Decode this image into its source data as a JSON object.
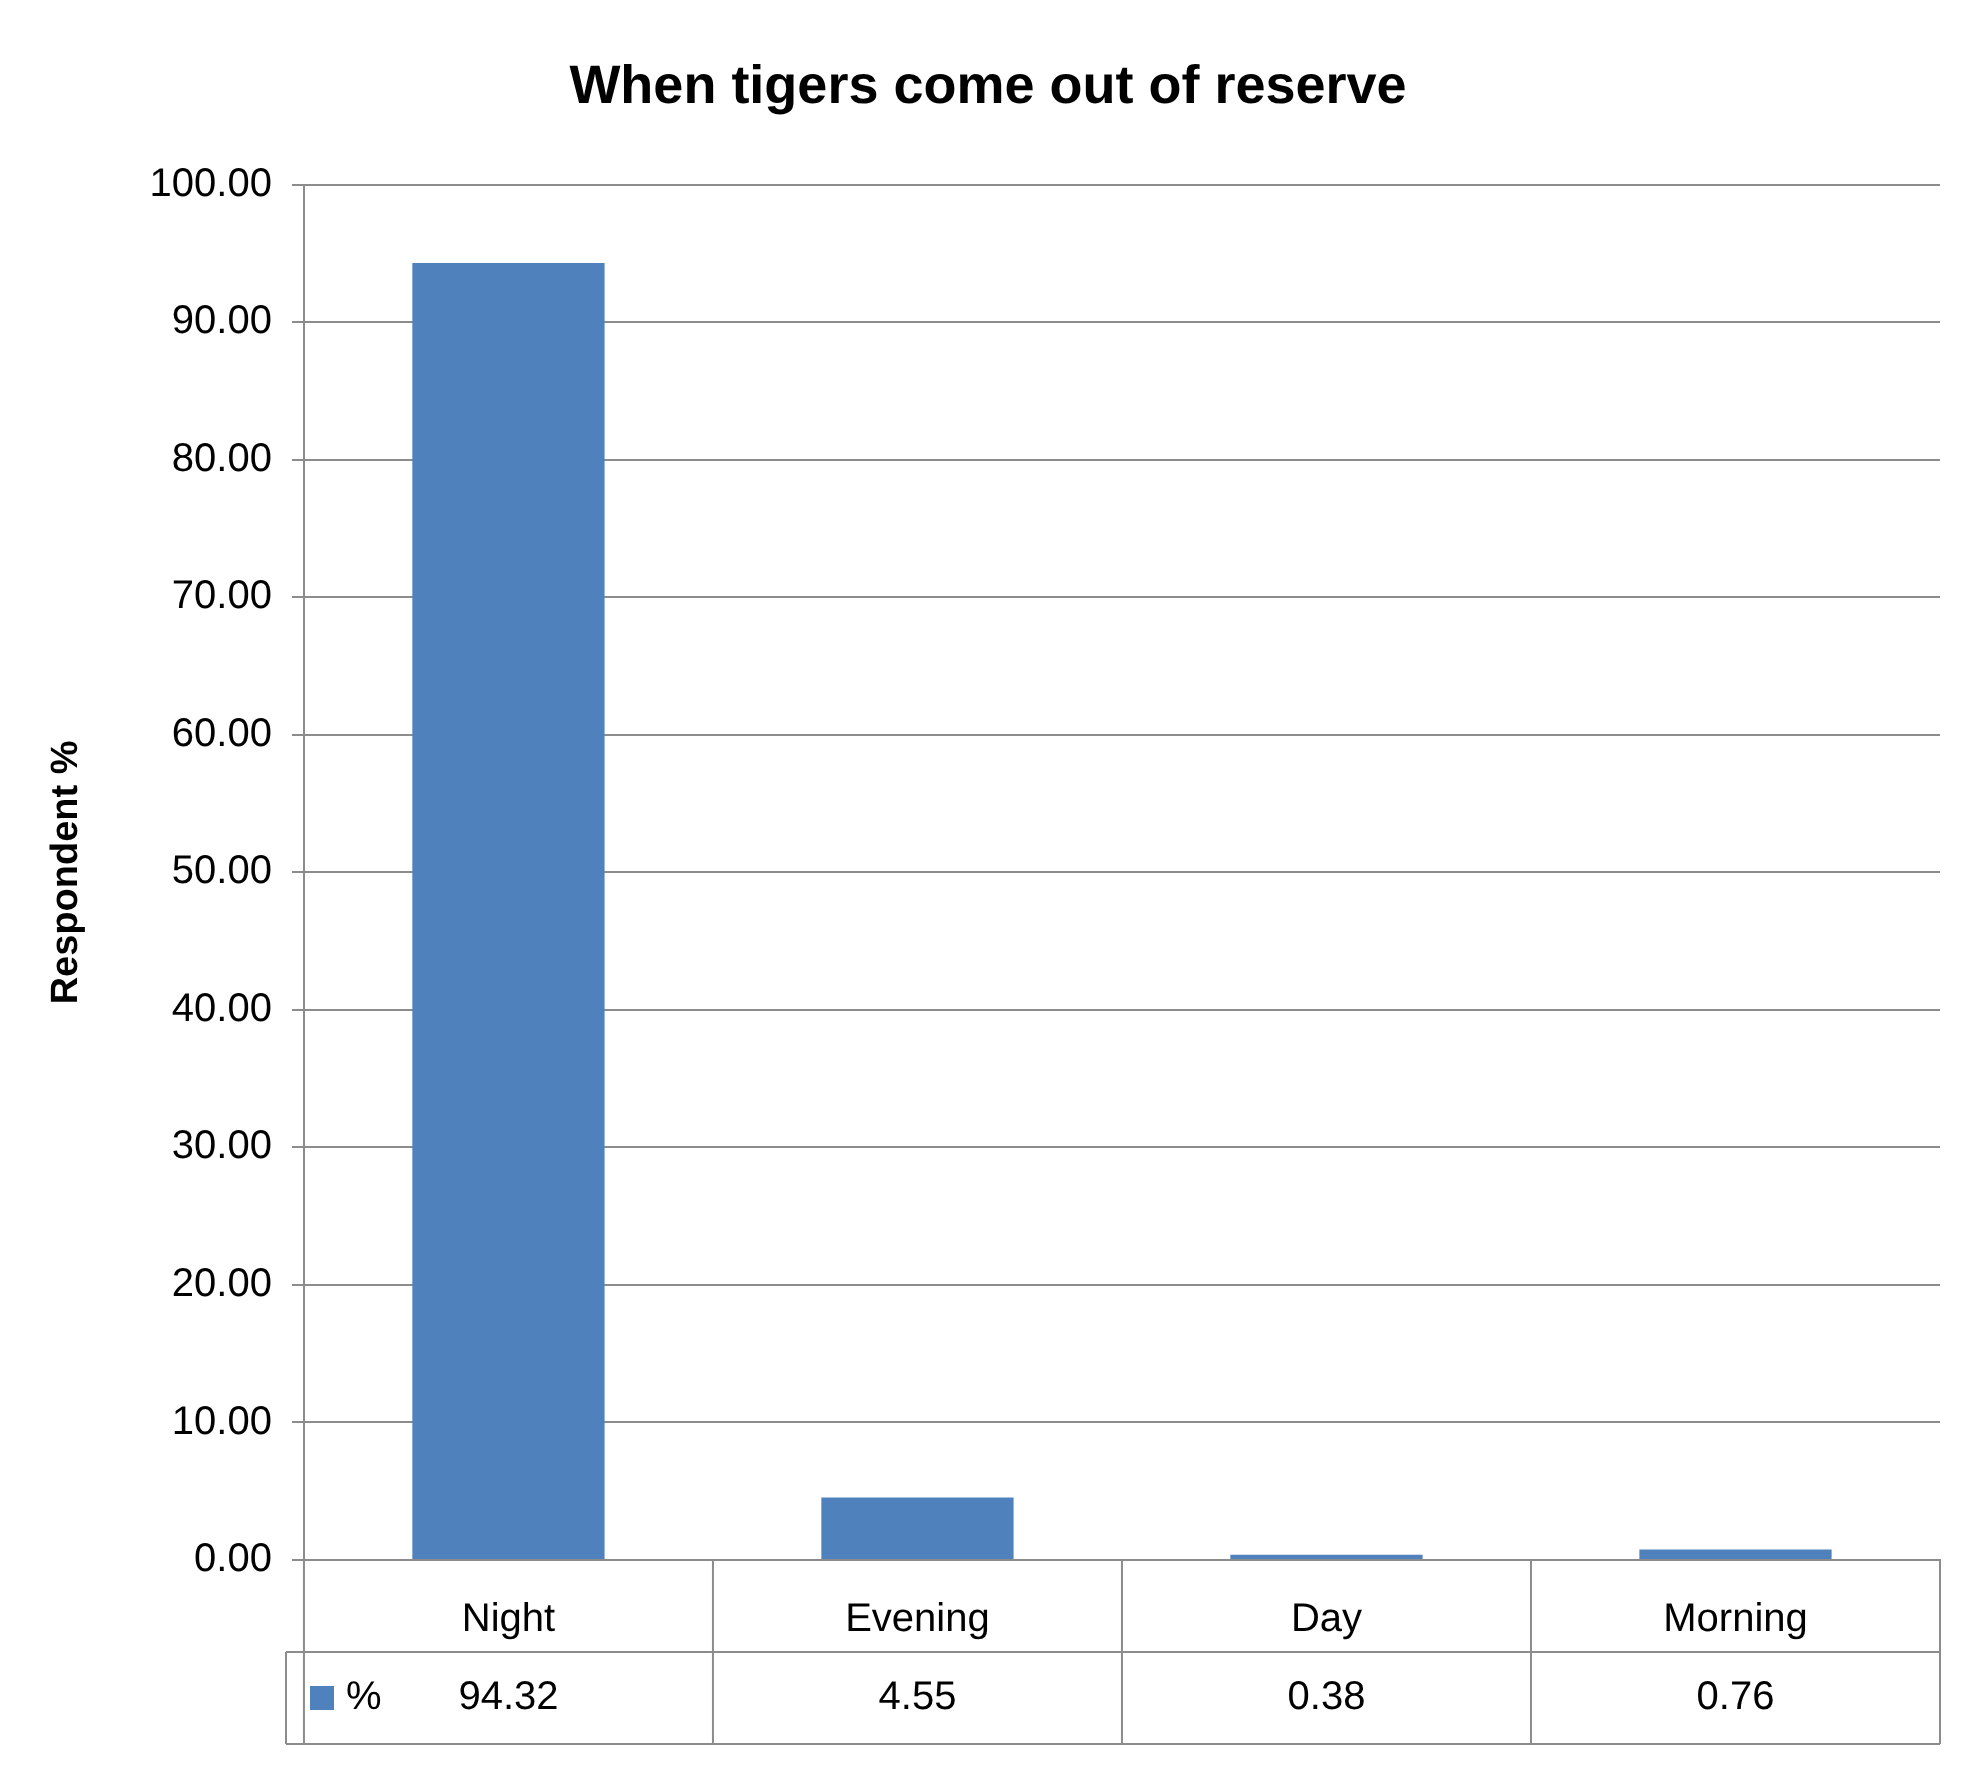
{
  "chart_data": {
    "type": "bar",
    "title": "When tigers come out of reserve",
    "ylabel": "Respondent %",
    "categories": [
      "Night",
      "Evening",
      "Day",
      "Morning"
    ],
    "series": [
      {
        "name": "%",
        "color": "#4f81bd",
        "values": [
          94.32,
          4.55,
          0.38,
          0.76
        ]
      }
    ],
    "ylim": [
      0,
      100
    ],
    "yticks": [
      {
        "value": 0,
        "label": "0.00"
      },
      {
        "value": 10,
        "label": "10.00"
      },
      {
        "value": 20,
        "label": "20.00"
      },
      {
        "value": 30,
        "label": "30.00"
      },
      {
        "value": 40,
        "label": "40.00"
      },
      {
        "value": 50,
        "label": "50.00"
      },
      {
        "value": 60,
        "label": "60.00"
      },
      {
        "value": 70,
        "label": "70.00"
      },
      {
        "value": 80,
        "label": "80.00"
      },
      {
        "value": 90,
        "label": "90.00"
      },
      {
        "value": 100,
        "label": "100.00"
      }
    ],
    "grid": "y",
    "data_labels": true,
    "legend": "bottom"
  }
}
